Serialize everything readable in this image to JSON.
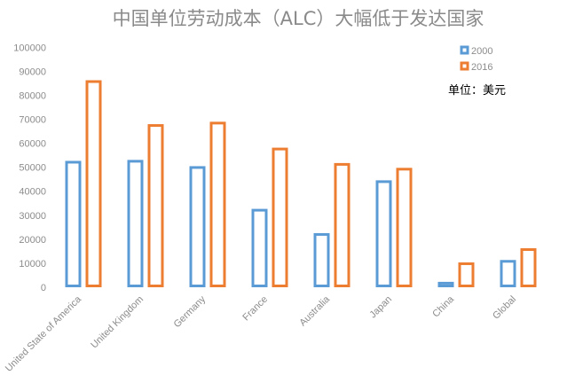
{
  "chart_data": {
    "type": "bar",
    "title": "中国单位劳动成本（ALC）大幅低于发达国家",
    "annotation": "单位：美元",
    "categories": [
      "United State of America",
      "United Kingdom",
      "Germany",
      "France",
      "Australia",
      "Japan",
      "China",
      "Global"
    ],
    "series": [
      {
        "name": "2000",
        "color": "#5b9bd5",
        "values": [
          52100,
          52500,
          49900,
          32100,
          22000,
          44000,
          1700,
          10800
        ]
      },
      {
        "name": "2016",
        "color": "#ed7d31",
        "values": [
          85700,
          67400,
          68400,
          57600,
          51200,
          49200,
          9800,
          15700
        ]
      }
    ],
    "ylim": [
      0,
      100000
    ],
    "yticks": [
      "0",
      "10000",
      "20000",
      "30000",
      "40000",
      "50000",
      "60000",
      "70000",
      "80000",
      "90000",
      "100000"
    ],
    "grid": false,
    "legend_position": "top-right",
    "bar_style": "outlined"
  }
}
